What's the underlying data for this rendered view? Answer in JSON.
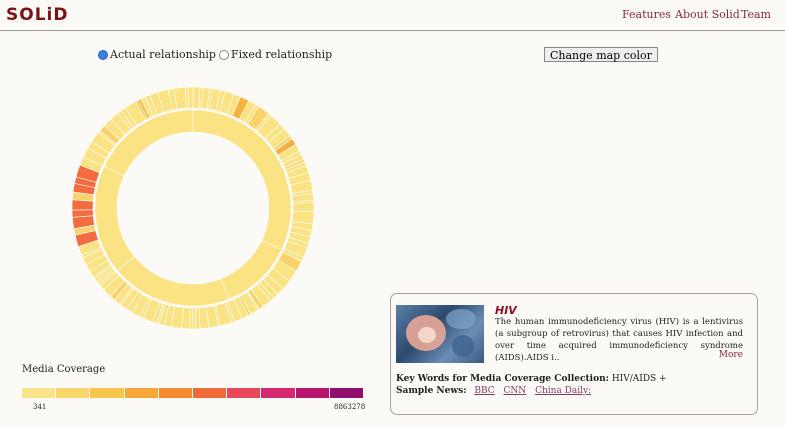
{
  "header": {
    "logo": "SOLiD",
    "nav": [
      "Features",
      "About Solid",
      "Team"
    ]
  },
  "controls": {
    "radio_actual": "Actual relationship",
    "radio_fixed": "Fixed relationship",
    "change_color": "Change map color"
  },
  "legend": {
    "title": "Media Coverage",
    "min": "341",
    "max": "8863278",
    "colors": [
      "#fae38a",
      "#fbd66a",
      "#f9c64d",
      "#f7a738",
      "#f58b2e",
      "#f16a3a",
      "#e8485a",
      "#d42870",
      "#b5146f",
      "#8e0f6e"
    ]
  },
  "card": {
    "title": "HIV",
    "description": "The human immunodeficiency virus (HIV) is a lentivirus (a subgroup of retrovirus) that causes HIV infection and over time acquired immunodeficiency syndrome (AIDS).AIDS i..",
    "more": "More",
    "keywords_label": "Key Words for Media Coverage Collection:",
    "keywords_value": "HIV/AIDS +",
    "news_label": "Sample News:",
    "news_links": [
      "BBC",
      "CNN",
      "China Daily:"
    ]
  },
  "colors": {
    "base": "#fbe283",
    "highlight": "#f46b3f",
    "accent": "#f5b23f",
    "brand": "#7b1318"
  }
}
